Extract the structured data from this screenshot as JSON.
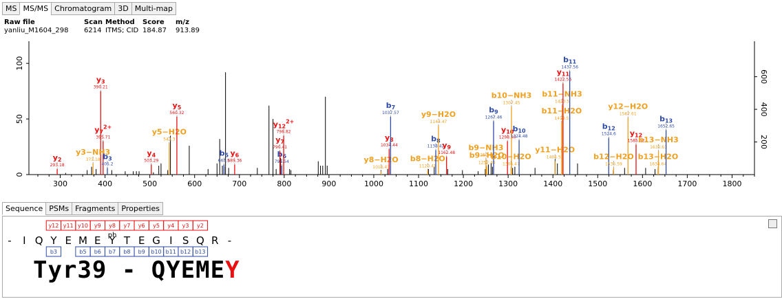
{
  "top_tabs": [
    "MS",
    "MS/MS",
    "Chromatogram",
    "3D",
    "Multi-map"
  ],
  "top_active": 1,
  "info": {
    "headers": [
      "Raw file",
      "Scan",
      "Method",
      "Score",
      "m/z"
    ],
    "values": [
      "yanliu_M1604_298",
      "6214",
      "ITMS; CID",
      "184.87",
      "913.89"
    ]
  },
  "colors": {
    "y": "#e81010",
    "b": "#2e4aa8",
    "neutral": "#f0a020",
    "peak": "#000000",
    "axis": "#000000"
  },
  "chart_data": {
    "type": "spectrum",
    "xlim": [
      230,
      1850
    ],
    "ylim_left": [
      0,
      110
    ],
    "ylim_right": [
      0,
      750
    ],
    "x_ticks": [
      300,
      400,
      500,
      600,
      700,
      800,
      900,
      1000,
      1100,
      1200,
      1300,
      1400,
      1500,
      1600,
      1700,
      1800
    ],
    "y_ticks_left": [
      0,
      50,
      100
    ],
    "y_ticks_right": [
      200,
      400,
      600
    ],
    "black_peaks": [
      [
        312,
        1.5
      ],
      [
        360,
        4
      ],
      [
        370,
        7
      ],
      [
        380,
        5
      ],
      [
        415,
        4
      ],
      [
        445,
        3
      ],
      [
        463,
        3
      ],
      [
        470,
        3
      ],
      [
        476,
        3
      ],
      [
        508,
        2
      ],
      [
        520,
        8
      ],
      [
        525,
        10
      ],
      [
        540,
        4
      ],
      [
        546,
        35
      ],
      [
        588,
        26
      ],
      [
        630,
        5
      ],
      [
        650,
        10
      ],
      [
        656,
        32
      ],
      [
        662,
        8
      ],
      [
        666,
        7
      ],
      [
        669,
        92
      ],
      [
        676,
        6
      ],
      [
        740,
        6
      ],
      [
        766,
        62
      ],
      [
        775,
        50
      ],
      [
        782,
        5
      ],
      [
        792,
        15
      ],
      [
        812,
        5
      ],
      [
        815,
        4
      ],
      [
        876,
        12
      ],
      [
        881,
        8
      ],
      [
        886,
        8
      ],
      [
        892,
        70
      ],
      [
        896,
        8
      ],
      [
        1016,
        4
      ],
      [
        1031,
        5
      ],
      [
        1034,
        6
      ],
      [
        1122,
        5
      ],
      [
        1135,
        7
      ],
      [
        1165,
        5
      ],
      [
        1198,
        4
      ],
      [
        1233,
        3
      ],
      [
        1249,
        5
      ],
      [
        1256,
        9
      ],
      [
        1262,
        10
      ],
      [
        1265,
        7
      ],
      [
        1310,
        6
      ],
      [
        1315,
        7
      ],
      [
        1360,
        6
      ],
      [
        1405,
        14
      ],
      [
        1410,
        10
      ],
      [
        1455,
        10
      ],
      [
        1535,
        4
      ],
      [
        1560,
        6
      ],
      [
        1607,
        6
      ],
      [
        1628,
        5
      ]
    ],
    "ions": [
      {
        "x": 293.18,
        "y": 5,
        "ion": "y",
        "n": "2",
        "mz": "293.18"
      },
      {
        "x": 390.21,
        "y": 75,
        "ion": "y",
        "n": "3",
        "mz": "390.21"
      },
      {
        "x": 395.71,
        "y": 30,
        "ion": "y",
        "n": "7",
        "ch": "2+",
        "mz": "395.71"
      },
      {
        "x": 373.18,
        "y": 10,
        "ion": "n",
        "label": "y3−NH3",
        "mz": "373.18"
      },
      {
        "x": 405.2,
        "y": 6,
        "ion": "b",
        "n": "3",
        "mz": "405.2"
      },
      {
        "x": 503.29,
        "y": 9,
        "ion": "y",
        "n": "4",
        "mz": "503.29"
      },
      {
        "x": 543.3,
        "y": 28,
        "ion": "n",
        "label": "y5−H2O",
        "mz": "543.3"
      },
      {
        "x": 560.32,
        "y": 52,
        "ion": "y",
        "n": "5",
        "mz": "560.32"
      },
      {
        "x": 665.5,
        "y": 9,
        "ion": "b",
        "n": "5",
        "mz": "665.5"
      },
      {
        "x": 689.36,
        "y": 9,
        "ion": "y",
        "n": "6",
        "mz": "689.36"
      },
      {
        "x": 794.54,
        "y": 8,
        "ion": "b",
        "n": "6",
        "mz": "794.54"
      },
      {
        "x": 790.41,
        "y": 21,
        "ion": "y",
        "n": "7",
        "mz": "790.41"
      },
      {
        "x": 798.82,
        "y": 35,
        "ion": "y",
        "n": "12",
        "ch": "2+",
        "mz": "798.82"
      },
      {
        "x": 1016.43,
        "y": 3,
        "ion": "n",
        "label": "y8−H2O",
        "mz": "1016.43"
      },
      {
        "x": 1034.44,
        "y": 23,
        "ion": "y",
        "n": "8",
        "mz": "1034.44"
      },
      {
        "x": 1037.57,
        "y": 52,
        "ion": "b",
        "n": "7",
        "mz": "1037.57"
      },
      {
        "x": 1120.41,
        "y": 4,
        "ion": "n",
        "label": "b8−H2O",
        "mz": "1120.41"
      },
      {
        "x": 1138.42,
        "y": 22,
        "ion": "b",
        "n": "8",
        "mz": "1138.42"
      },
      {
        "x": 1144.47,
        "y": 44,
        "ion": "n",
        "label": "y9−H2O",
        "mz": "1144.47"
      },
      {
        "x": 1162.48,
        "y": 16,
        "ion": "y",
        "n": "9",
        "mz": "1162.48"
      },
      {
        "x": 1250.49,
        "y": 14,
        "ion": "n",
        "label": "b9−NH3",
        "mz": "1250.49"
      },
      {
        "x": 1252.46,
        "y": 7,
        "ion": "n",
        "label": "b9−H2O",
        "mz": "1252.46"
      },
      {
        "x": 1267.46,
        "y": 48,
        "ion": "b",
        "n": "9",
        "mz": "1267.46"
      },
      {
        "x": 1298.5,
        "y": 30,
        "ion": "y",
        "n": "10",
        "mz": "1298.50"
      },
      {
        "x": 1307.45,
        "y": 61,
        "ion": "n",
        "label": "b10−NH3",
        "mz": "1307.45"
      },
      {
        "x": 1306.47,
        "y": 6,
        "ion": "n",
        "label": "b10−H2O",
        "mz": "1306.47"
      },
      {
        "x": 1324.48,
        "y": 31,
        "ion": "b",
        "n": "10",
        "mz": "1324.48"
      },
      {
        "x": 1404.55,
        "y": 12,
        "ion": "n",
        "label": "y11−H2O",
        "mz": "1404.55"
      },
      {
        "x": 1420.5,
        "y": 62,
        "ion": "n",
        "label": "b11−NH3",
        "mz": "1420.5"
      },
      {
        "x": 1419.5,
        "y": 47,
        "ion": "n",
        "label": "b11−H2O",
        "mz": "1419.5"
      },
      {
        "x": 1422.56,
        "y": 82,
        "ion": "y",
        "n": "11",
        "mz": "1422.56"
      },
      {
        "x": 1437.56,
        "y": 93,
        "ion": "b",
        "n": "11",
        "mz": "1437.56"
      },
      {
        "x": 1524.6,
        "y": 33,
        "ion": "b",
        "n": "12",
        "mz": "1524.6"
      },
      {
        "x": 1535.59,
        "y": 6,
        "ion": "n",
        "label": "b12−H2O",
        "mz": "1535.59"
      },
      {
        "x": 1567.61,
        "y": 51,
        "ion": "n",
        "label": "y12−H2O",
        "mz": "1567.61"
      },
      {
        "x": 1585.62,
        "y": 27,
        "ion": "y",
        "n": "12",
        "mz": "1585.62"
      },
      {
        "x": 1634.64,
        "y": 6,
        "ion": "n",
        "label": "b13−H2O",
        "mz": "1634.64"
      },
      {
        "x": 1635.63,
        "y": 21,
        "ion": "n",
        "label": "b13−NH3",
        "mz": "1635.63"
      },
      {
        "x": 1652.65,
        "y": 40,
        "ion": "b",
        "n": "13",
        "mz": "1652.65"
      }
    ]
  },
  "bottom_tabs": [
    "Sequence",
    "PSMs",
    "Fragments",
    "Properties"
  ],
  "bottom_active": 0,
  "sequence": {
    "residues": [
      "-",
      "I",
      "Q",
      "Y",
      "E",
      "M",
      "E",
      "Y",
      "T",
      "E",
      "G",
      "I",
      "S",
      "Q",
      "R",
      "-"
    ],
    "y_labels": [
      "y12",
      "y11",
      "y10",
      "y9",
      "y8",
      "y7",
      "y6",
      "y5",
      "y4",
      "y3",
      "y2"
    ],
    "b_labels": [
      "b3",
      "b5",
      "b6",
      "b7",
      "b8",
      "b9",
      "b10",
      "b11",
      "b12",
      "b13"
    ],
    "mod": "ph",
    "title_main": "Tyr39 - QYEME",
    "title_red": "Y"
  }
}
